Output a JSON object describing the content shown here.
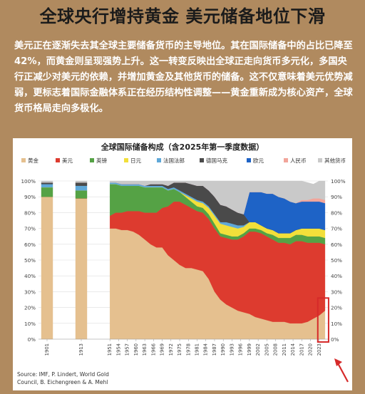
{
  "page": {
    "headline": "全球央行增持黄金 美元储备地位下滑",
    "intro": "美元正在逐渐失去其全球主要储备货币的主导地位。其在国际储备中的占比已降至42%，而黄金则呈现强势上升。这一转变反映出全球正走向货币多元化，多国央行正减少对美元的依赖，并增加黄金及其他货币的储备。这不仅意味着美元优势减弱，更标志着国际金融体系正在经历结构性调整——黄金重新成为核心资产，全球货币格局走向多极化。"
  },
  "chart_data": {
    "type": "area",
    "title": "全球国际储备构成（含2025年第一季度数据）",
    "source_line1": "Source: IMF, P. Lindert, World Gold",
    "source_line2": "Council, B. Eichengreen & A. Mehl",
    "legend_position": "top",
    "grid": true,
    "ylim": [
      0,
      100
    ],
    "y_ticks": [
      "0%",
      "10%",
      "20%",
      "30%",
      "40%",
      "50%",
      "60%",
      "70%",
      "80%",
      "90%",
      "100%"
    ],
    "x_tick_labels": [
      "1901",
      "1913",
      "1951",
      "1954",
      "1957",
      "1960",
      "1963",
      "1966",
      "1969",
      "1972",
      "1975",
      "1978",
      "1981",
      "1984",
      "1987",
      "1990",
      "1993",
      "1996",
      "1999",
      "2002",
      "2005",
      "2008",
      "2011",
      "2014",
      "2017",
      "2020",
      "2023"
    ],
    "series": [
      {
        "name": "黄金",
        "color": "#E5C08F"
      },
      {
        "name": "美元",
        "color": "#DD3B2F"
      },
      {
        "name": "英镑",
        "color": "#55A245"
      },
      {
        "name": "日元",
        "color": "#F2DF3A"
      },
      {
        "name": "法国法郎",
        "color": "#5FA8D8"
      },
      {
        "name": "德国马克",
        "color": "#4A4A4A"
      },
      {
        "name": "欧元",
        "color": "#1E63C6"
      },
      {
        "name": "人民币",
        "color": "#F2A59A"
      },
      {
        "name": "其他货币",
        "color": "#C9C9C9"
      }
    ],
    "x": [
      1899,
      1900,
      1901,
      1902,
      1903,
      1911,
      1912,
      1913,
      1914,
      1915,
      1951,
      1953,
      1955,
      1957,
      1959,
      1961,
      1963,
      1965,
      1967,
      1969,
      1971,
      1973,
      1975,
      1977,
      1979,
      1981,
      1983,
      1985,
      1987,
      1989,
      1991,
      1993,
      1995,
      1997,
      1999,
      2001,
      2003,
      2005,
      2007,
      2009,
      2011,
      2013,
      2015,
      2017,
      2019,
      2021,
      2023,
      2025
    ],
    "values": {
      "黄金": [
        90,
        90,
        90,
        90,
        90,
        89,
        89,
        89,
        89,
        89,
        70,
        70,
        69,
        69,
        68,
        66,
        63,
        60,
        58,
        58,
        53,
        50,
        47,
        45,
        45,
        44,
        43,
        38,
        30,
        25,
        22,
        20,
        18,
        17,
        16,
        14,
        13,
        12,
        11,
        11,
        11,
        10,
        10,
        10,
        11,
        13,
        15,
        18
      ],
      "美元": [
        0,
        0,
        0,
        0,
        0,
        0,
        0,
        0,
        0,
        0,
        8,
        10,
        11,
        12,
        13,
        15,
        17,
        20,
        22,
        25,
        31,
        37,
        40,
        40,
        38,
        37,
        37,
        38,
        40,
        40,
        42,
        43,
        45,
        48,
        52,
        54,
        54,
        53,
        52,
        50,
        50,
        50,
        52,
        52,
        50,
        48,
        46,
        42
      ],
      "英镑": [
        6,
        6,
        6,
        6,
        6,
        5,
        5,
        5,
        5,
        5,
        20,
        18,
        17,
        16,
        16,
        16,
        16,
        16,
        16,
        13,
        10,
        8,
        6,
        5,
        4,
        3,
        3,
        3,
        3,
        2,
        2,
        2,
        2,
        2,
        2,
        2,
        2,
        2,
        3,
        3,
        3,
        4,
        4,
        4,
        4,
        4,
        4,
        4
      ],
      "日元": [
        0,
        0,
        0,
        0,
        0,
        0,
        0,
        0,
        0,
        0,
        0,
        0,
        0,
        0,
        0,
        0,
        0,
        0,
        0,
        0,
        0,
        0,
        0,
        1,
        2,
        3,
        3,
        4,
        5,
        6,
        6,
        6,
        5,
        4,
        4,
        4,
        3,
        3,
        3,
        3,
        3,
        3,
        3,
        4,
        5,
        5,
        5,
        5
      ],
      "法国法郎": [
        2,
        2,
        2,
        2,
        2,
        3,
        3,
        3,
        3,
        3,
        1,
        1,
        1,
        1,
        1,
        1,
        1,
        1,
        1,
        1,
        1,
        1,
        1,
        1,
        1,
        1,
        1,
        1,
        1,
        1,
        2,
        2,
        2,
        1,
        0,
        0,
        0,
        0,
        0,
        0,
        0,
        0,
        0,
        0,
        0,
        0,
        0,
        0
      ],
      "德国马克": [
        1,
        1,
        1,
        1,
        1,
        2,
        2,
        2,
        2,
        2,
        0,
        0,
        0,
        0,
        0,
        0,
        0,
        1,
        1,
        1,
        2,
        3,
        5,
        7,
        8,
        9,
        10,
        10,
        11,
        11,
        10,
        9,
        8,
        7,
        0,
        0,
        0,
        0,
        0,
        0,
        0,
        0,
        0,
        0,
        0,
        0,
        0,
        0
      ],
      "欧元": [
        0,
        0,
        0,
        0,
        0,
        0,
        0,
        0,
        0,
        0,
        0,
        0,
        0,
        0,
        0,
        0,
        0,
        0,
        0,
        0,
        0,
        0,
        0,
        0,
        0,
        0,
        0,
        0,
        0,
        0,
        0,
        0,
        0,
        0,
        19,
        19,
        21,
        22,
        23,
        23,
        22,
        20,
        17,
        17,
        17,
        17,
        17,
        17
      ],
      "人民币": [
        0,
        0,
        0,
        0,
        0,
        0,
        0,
        0,
        0,
        0,
        0,
        0,
        0,
        0,
        0,
        0,
        0,
        0,
        0,
        0,
        0,
        0,
        0,
        0,
        0,
        0,
        0,
        0,
        0,
        0,
        0,
        0,
        0,
        0,
        0,
        0,
        0,
        0,
        0,
        0,
        0,
        0,
        0,
        1,
        1,
        2,
        2,
        2
      ],
      "其他货币": [
        1,
        1,
        1,
        1,
        1,
        1,
        1,
        1,
        1,
        1,
        1,
        1,
        2,
        2,
        2,
        2,
        3,
        2,
        2,
        2,
        3,
        1,
        1,
        1,
        2,
        3,
        3,
        6,
        10,
        15,
        16,
        18,
        20,
        21,
        7,
        7,
        7,
        8,
        8,
        10,
        11,
        13,
        14,
        12,
        11,
        9,
        11,
        12
      ]
    },
    "gaps": [
      [
        1903,
        1911
      ],
      [
        1915,
        1951
      ]
    ],
    "highlight": {
      "x_from": 2023,
      "x_to": 2025,
      "color": "#D62A2A"
    }
  }
}
